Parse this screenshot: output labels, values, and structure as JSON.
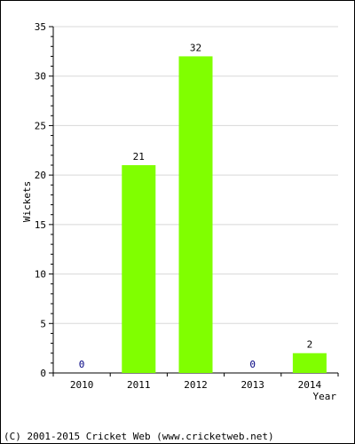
{
  "chart_data": {
    "type": "bar",
    "categories": [
      "2010",
      "2011",
      "2012",
      "2013",
      "2014"
    ],
    "values": [
      0,
      21,
      32,
      0,
      2
    ],
    "xlabel": "Year",
    "ylabel": "Wickets",
    "ylim": [
      0,
      35
    ],
    "yticks": [
      "0",
      "5",
      "10",
      "15",
      "20",
      "25",
      "30",
      "35"
    ],
    "grid": true,
    "bar_color": "#80ff00",
    "value_label_color_zero": "#000080"
  },
  "footer": {
    "copyright": "(C) 2001-2015 Cricket Web (www.cricketweb.net)"
  }
}
